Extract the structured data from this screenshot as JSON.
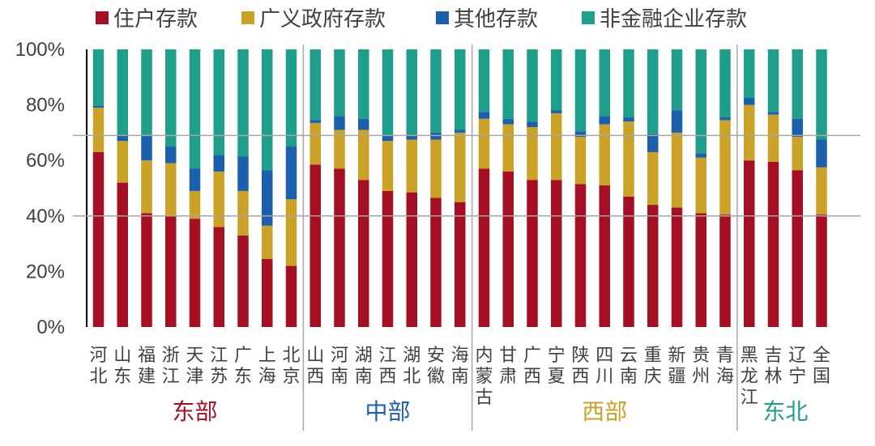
{
  "chart_data": {
    "type": "bar",
    "stacked": true,
    "ylim": [
      0,
      100
    ],
    "yticks": [
      "0%",
      "20%",
      "40%",
      "60%",
      "80%",
      "100%"
    ],
    "reference_lines": [
      40,
      69
    ],
    "colors": {
      "住户存款": "#a50f24",
      "广义政府存款": "#c9a227",
      "其他存款": "#1b5fad",
      "非金融企业存款": "#1f9e8a",
      "text": "#404040",
      "axis": "#000000",
      "divider": "#a6a6a6"
    },
    "legend": [
      "住户存款",
      "广义政府存款",
      "其他存款",
      "非金融企业存款"
    ],
    "categories": [
      {
        "label": "河北",
        "lines": [
          "河",
          "北"
        ]
      },
      {
        "label": "山东",
        "lines": [
          "山",
          "东"
        ]
      },
      {
        "label": "福建",
        "lines": [
          "福",
          "建"
        ]
      },
      {
        "label": "浙江",
        "lines": [
          "浙",
          "江"
        ]
      },
      {
        "label": "天津",
        "lines": [
          "天",
          "津"
        ]
      },
      {
        "label": "江苏",
        "lines": [
          "江",
          "苏"
        ]
      },
      {
        "label": "广东",
        "lines": [
          "广",
          "东"
        ]
      },
      {
        "label": "上海",
        "lines": [
          "上",
          "海"
        ]
      },
      {
        "label": "北京",
        "lines": [
          "北",
          "京"
        ]
      },
      {
        "label": "山西",
        "lines": [
          "山",
          "西"
        ]
      },
      {
        "label": "河南",
        "lines": [
          "河",
          "南"
        ]
      },
      {
        "label": "湖南",
        "lines": [
          "湖",
          "南"
        ]
      },
      {
        "label": "江西",
        "lines": [
          "江",
          "西"
        ]
      },
      {
        "label": "湖北",
        "lines": [
          "湖",
          "北"
        ]
      },
      {
        "label": "安徽",
        "lines": [
          "安",
          "徽"
        ]
      },
      {
        "label": "海南",
        "lines": [
          "海",
          "南"
        ]
      },
      {
        "label": "内蒙古",
        "lines": [
          "内",
          "蒙",
          "古"
        ]
      },
      {
        "label": "甘肃",
        "lines": [
          "甘",
          "肃"
        ]
      },
      {
        "label": "广西",
        "lines": [
          "广",
          "西"
        ]
      },
      {
        "label": "宁夏",
        "lines": [
          "宁",
          "夏"
        ]
      },
      {
        "label": "陕西",
        "lines": [
          "陕",
          "西"
        ]
      },
      {
        "label": "四川",
        "lines": [
          "四",
          "川"
        ]
      },
      {
        "label": "云南",
        "lines": [
          "云",
          "南"
        ]
      },
      {
        "label": "重庆",
        "lines": [
          "重",
          "庆"
        ]
      },
      {
        "label": "新疆",
        "lines": [
          "新",
          "疆"
        ]
      },
      {
        "label": "贵州",
        "lines": [
          "贵",
          "州"
        ]
      },
      {
        "label": "青海",
        "lines": [
          "青",
          "海"
        ]
      },
      {
        "label": "黑龙江",
        "lines": [
          "黑",
          "龙",
          "江"
        ]
      },
      {
        "label": "吉林",
        "lines": [
          "吉",
          "林"
        ]
      },
      {
        "label": "辽宁",
        "lines": [
          "辽",
          "宁"
        ]
      },
      {
        "label": "全国",
        "lines": [
          "全",
          "国"
        ]
      }
    ],
    "series": [
      {
        "name": "住户存款",
        "values": [
          63,
          52,
          41,
          40,
          39,
          36,
          33,
          24.5,
          22,
          58.5,
          57,
          53,
          49,
          48.5,
          46.5,
          45,
          57,
          56,
          53,
          53,
          51.5,
          51,
          47,
          44,
          43,
          41,
          40.5,
          60,
          59.5,
          56.5,
          40.5
        ]
      },
      {
        "name": "广义政府存款",
        "values": [
          16,
          15,
          19,
          19,
          10,
          20,
          16,
          12,
          24,
          15,
          14,
          18,
          18,
          19,
          21,
          25,
          18,
          17,
          19,
          24,
          17,
          22,
          27,
          19,
          27,
          20,
          34,
          20,
          17,
          12,
          17
        ]
      },
      {
        "name": "其他存款",
        "values": [
          0.6,
          2,
          9,
          6,
          8,
          6,
          12.5,
          20,
          19,
          1,
          5,
          4,
          2,
          1.5,
          2.5,
          1,
          2.5,
          2,
          2,
          1,
          2,
          3,
          1.5,
          6.5,
          8,
          1.5,
          1,
          2.5,
          1,
          6.5,
          10
        ]
      },
      {
        "name": "非金融企业存款",
        "values": [
          20.4,
          31,
          31,
          35,
          43,
          38,
          38.5,
          43.5,
          35,
          25.5,
          24,
          25,
          31,
          31,
          30,
          29,
          22.5,
          25,
          26,
          22,
          29.5,
          24,
          24.5,
          30.5,
          22,
          37.5,
          24.5,
          17.5,
          22.5,
          25,
          32.5
        ]
      }
    ],
    "groups": [
      {
        "name": "东部",
        "start": 0,
        "end": 8,
        "color": "#a50f24"
      },
      {
        "name": "中部",
        "start": 9,
        "end": 15,
        "color": "#1b5fad"
      },
      {
        "name": "西部",
        "start": 16,
        "end": 26,
        "color": "#c9a227"
      },
      {
        "name": "东北",
        "start": 27,
        "end": 30,
        "color": "#1f9e8a"
      }
    ]
  }
}
